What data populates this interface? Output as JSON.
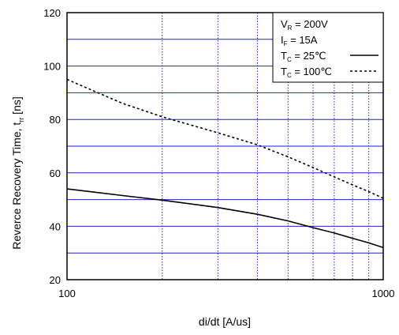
{
  "chart_data": {
    "type": "line",
    "title": "",
    "xlabel": "di/dt  [A/us]",
    "ylabel_main": "Reverce Recovery Time, t",
    "ylabel_sub": "rr",
    "ylabel_unit": " [ns]",
    "xscale": "log",
    "xlim": [
      100,
      1000
    ],
    "ylim": [
      20,
      120
    ],
    "x_ticks": [
      100,
      1000
    ],
    "x_tick_labels": [
      "100",
      "1000"
    ],
    "y_ticks": [
      20,
      40,
      60,
      80,
      100,
      120
    ],
    "y_tick_labels": [
      "20",
      "40",
      "60",
      "80",
      "100",
      "120"
    ],
    "x_minor_gridlines": [
      200,
      300,
      400,
      500,
      600,
      700,
      800,
      900
    ],
    "y_gridlines": [
      30,
      40,
      50,
      60,
      70,
      80,
      90,
      100,
      110
    ],
    "grid": true,
    "grid_color": "#2222cc",
    "legend_position": "top-right",
    "legend": {
      "conditions": [
        {
          "main": "V",
          "sub": "R",
          "rest": " = 200V"
        },
        {
          "main": "I",
          "sub": "F",
          "rest": " = 15A"
        }
      ],
      "entries": [
        {
          "main": "T",
          "sub": "C",
          "rest": " =   25℃",
          "style": "solid"
        },
        {
          "main": "T",
          "sub": "C",
          "rest": " = 100℃",
          "style": "dashed"
        }
      ]
    },
    "series": [
      {
        "style": "solid",
        "x": [
          100,
          150,
          200,
          300,
          400,
          500,
          600,
          700,
          800,
          900,
          1000
        ],
        "y": [
          54,
          51.5,
          49.8,
          47,
          44.5,
          42,
          39.5,
          37.5,
          35.5,
          33.8,
          32
        ]
      },
      {
        "style": "dashed",
        "x": [
          100,
          150,
          200,
          300,
          400,
          500,
          600,
          700,
          800,
          900,
          1000
        ],
        "y": [
          95,
          86,
          81,
          75,
          70.5,
          66,
          62,
          58.5,
          55.5,
          53,
          50.5
        ]
      }
    ]
  }
}
